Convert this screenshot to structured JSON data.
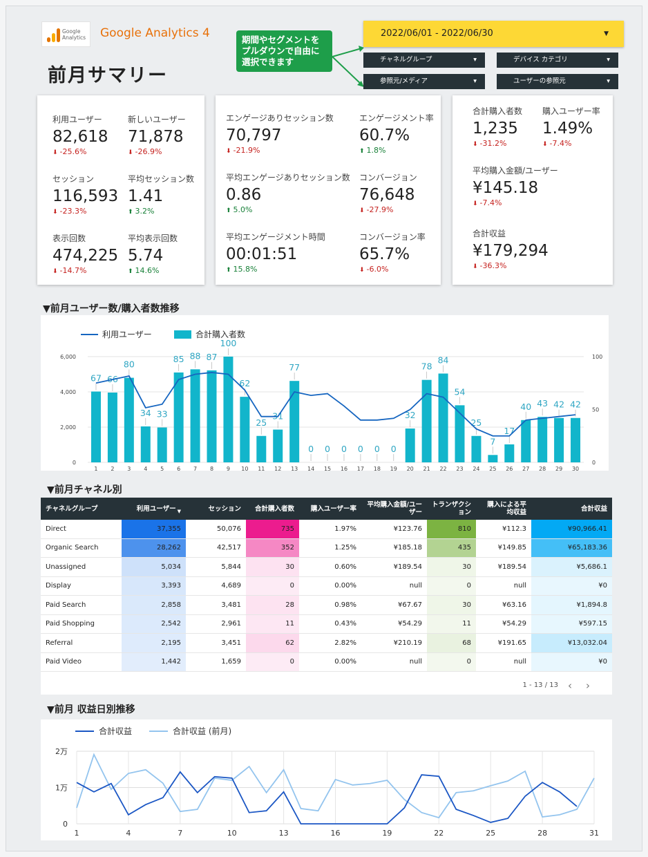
{
  "header": {
    "logo_text": "Google Analytics",
    "brand": "Google Analytics 4",
    "title": "前月サマリー",
    "callout": "期間やセグメントをプルダウンで自由に選択できます",
    "date_range": "2022/06/01 - 2022/06/30",
    "filters": [
      "チャネルグループ",
      "デバイス カテゴリ",
      "参照元/メディア",
      "ユーザーの参照元"
    ]
  },
  "scorecards": [
    [
      {
        "label": "利用ユーザー",
        "value": "82,618",
        "change": "-25.6%"
      },
      {
        "label": "新しいユーザー",
        "value": "71,878",
        "change": "-26.9%"
      },
      {
        "label": "セッション",
        "value": "116,593",
        "change": "-23.3%"
      },
      {
        "label": "平均セッション数",
        "value": "1.41",
        "change": "3.2%"
      },
      {
        "label": "表示回数",
        "value": "474,225",
        "change": "-14.7%"
      },
      {
        "label": "平均表示回数",
        "value": "5.74",
        "change": "14.6%"
      }
    ],
    [
      {
        "label": "エンゲージありセッション数",
        "value": "70,797",
        "change": "-21.9%"
      },
      {
        "label": "エンゲージメント率",
        "value": "60.7%",
        "change": "1.8%"
      },
      {
        "label": "平均エンゲージありセッション数",
        "value": "0.86",
        "change": "5.0%"
      },
      {
        "label": "コンバージョン",
        "value": "76,648",
        "change": "-27.9%"
      },
      {
        "label": "平均エンゲージメント時間",
        "value": "00:01:51",
        "change": "15.8%"
      },
      {
        "label": "コンバージョン率",
        "value": "65.7%",
        "change": "-6.0%"
      }
    ],
    [
      {
        "label": "合計購入者数",
        "value": "1,235",
        "change": "-31.2%"
      },
      {
        "label": "購入ユーザー率",
        "value": "1.49%",
        "change": "-7.4%"
      },
      {
        "label": "平均購入金額/ユーザー",
        "value": "¥145.18",
        "change": "-7.4%"
      },
      {
        "label": "合計収益",
        "value": "¥179,294",
        "change": "-36.3%"
      }
    ]
  ],
  "chart_data": [
    {
      "type": "combo",
      "title": "▼前月ユーザー数/購入者数推移",
      "categories": [
        1,
        2,
        3,
        4,
        5,
        6,
        7,
        8,
        9,
        10,
        11,
        12,
        13,
        14,
        15,
        16,
        17,
        18,
        19,
        20,
        21,
        22,
        23,
        24,
        25,
        26,
        27,
        28,
        29,
        30
      ],
      "series": [
        {
          "name": "利用ユーザー",
          "kind": "line",
          "color": "#1565c0",
          "values": [
            4500,
            4700,
            4900,
            3100,
            3300,
            4700,
            5000,
            5100,
            5000,
            4100,
            2600,
            2600,
            4000,
            3800,
            3900,
            3200,
            2400,
            2400,
            2500,
            3000,
            3900,
            3700,
            2800,
            1900,
            1500,
            1500,
            2400,
            2500,
            2600,
            2700
          ]
        },
        {
          "name": "合計購入者数",
          "kind": "bar",
          "axis": "y2",
          "color": "#12b5cb",
          "values": [
            67,
            66,
            80,
            34,
            33,
            85,
            88,
            87,
            100,
            62,
            25,
            31,
            77,
            0,
            0,
            0,
            0,
            0,
            0,
            32,
            78,
            84,
            54,
            25,
            7,
            17,
            40,
            43,
            42,
            42
          ]
        }
      ],
      "ylim": [
        0,
        6000
      ],
      "yticks": [
        0,
        {
          "value": 2000,
          "label": "2,000"
        },
        {
          "value": 4000,
          "label": "4,000"
        },
        {
          "value": 6000,
          "label": "6,000"
        }
      ],
      "y2lim": [
        0,
        100
      ],
      "y2ticks": [
        0,
        50,
        100
      ],
      "grid": true
    },
    {
      "type": "line",
      "title": "▼前月 収益日別推移",
      "x": [
        1,
        2,
        3,
        4,
        5,
        6,
        7,
        8,
        9,
        10,
        11,
        12,
        13,
        14,
        15,
        16,
        17,
        18,
        19,
        20,
        21,
        22,
        23,
        24,
        25,
        26,
        27,
        28,
        29,
        30,
        31
      ],
      "series": [
        {
          "name": "合計収益",
          "color": "#1a56c4",
          "values": [
            11400,
            8800,
            11100,
            2500,
            5300,
            7200,
            14300,
            8600,
            13000,
            12600,
            3100,
            3600,
            8800,
            0,
            0,
            0,
            0,
            0,
            0,
            4400,
            13500,
            13100,
            4000,
            2300,
            400,
            1500,
            7600,
            11400,
            8800,
            4800,
            null
          ]
        },
        {
          "name": "合計収益 (前月)",
          "color": "#93c4ee",
          "values": [
            4400,
            19100,
            9500,
            13900,
            14900,
            11200,
            3400,
            4000,
            12600,
            12000,
            15800,
            8600,
            14900,
            4200,
            3600,
            12200,
            10700,
            11100,
            12000,
            6700,
            3100,
            1700,
            8600,
            9100,
            10500,
            11800,
            14500,
            1900,
            2500,
            4000,
            12600
          ]
        }
      ],
      "xlim": [
        1,
        31
      ],
      "xticks": [
        1,
        4,
        7,
        10,
        13,
        16,
        19,
        22,
        25,
        28,
        31
      ],
      "ylim": [
        0,
        20000
      ],
      "yticks": [
        0,
        {
          "value": 10000,
          "label": "1万"
        },
        {
          "value": 20000,
          "label": "2万"
        }
      ],
      "grid": true
    }
  ],
  "table": {
    "title": "▼前月チャネル別",
    "columns": [
      "チャネルグループ",
      "利用ユーザー",
      "セッション",
      "合計購入者数",
      "購入ユーザー率",
      "平均購入金額/ユーザー",
      "トランザクション",
      "購入による平均収益",
      "合計収益"
    ],
    "heat_colors": [
      null,
      "#1a73e8",
      null,
      "#ec1c8e",
      null,
      null,
      "#7cb342",
      null,
      "#03a9f4"
    ],
    "rows": [
      [
        "Direct",
        "37,355",
        "50,076",
        "735",
        "1.97%",
        "¥123.76",
        "810",
        "¥112.3",
        "¥90,966.41"
      ],
      [
        "Organic Search",
        "28,262",
        "42,517",
        "352",
        "1.25%",
        "¥185.18",
        "435",
        "¥149.85",
        "¥65,183.36"
      ],
      [
        "Unassigned",
        "5,034",
        "5,844",
        "30",
        "0.60%",
        "¥189.54",
        "30",
        "¥189.54",
        "¥5,686.1"
      ],
      [
        "Display",
        "3,393",
        "4,689",
        "0",
        "0.00%",
        "null",
        "0",
        "null",
        "¥0"
      ],
      [
        "Paid Search",
        "2,858",
        "3,481",
        "28",
        "0.98%",
        "¥67.67",
        "30",
        "¥63.16",
        "¥1,894.8"
      ],
      [
        "Paid Shopping",
        "2,542",
        "2,961",
        "11",
        "0.43%",
        "¥54.29",
        "11",
        "¥54.29",
        "¥597.15"
      ],
      [
        "Referral",
        "2,195",
        "3,451",
        "62",
        "2.82%",
        "¥210.19",
        "68",
        "¥191.65",
        "¥13,032.04"
      ],
      [
        "Paid Video",
        "1,442",
        "1,659",
        "0",
        "0.00%",
        "null",
        "0",
        "null",
        "¥0"
      ]
    ],
    "pagination": "1 - 13 / 13"
  }
}
